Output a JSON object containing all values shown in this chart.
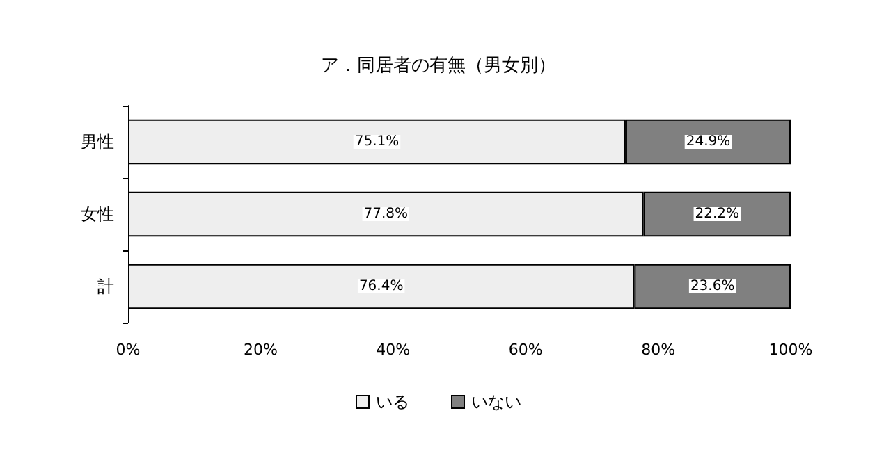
{
  "chart_data": {
    "type": "bar",
    "title": "ア．同居者の有無（男女別）",
    "orientation": "horizontal",
    "stacked": true,
    "categories": [
      "男性",
      "女性",
      "計"
    ],
    "series": [
      {
        "name": "いる",
        "color": "#eeeeee",
        "values": [
          75.1,
          77.8,
          76.4
        ],
        "value_labels": [
          "75.1%",
          "77.8%",
          "76.4%"
        ]
      },
      {
        "name": "いない",
        "color": "#808080",
        "values": [
          24.9,
          22.2,
          23.6
        ],
        "value_labels": [
          "24.9%",
          "22.2%",
          "23.6%"
        ]
      }
    ],
    "xlim": [
      0,
      100
    ],
    "xticks": [
      {
        "value": 0,
        "label": "0%"
      },
      {
        "value": 20,
        "label": "20%"
      },
      {
        "value": 40,
        "label": "40%"
      },
      {
        "value": 60,
        "label": "60%"
      },
      {
        "value": 80,
        "label": "80%"
      },
      {
        "value": 100,
        "label": "100%"
      }
    ],
    "legend": "bottom",
    "grid": false
  }
}
